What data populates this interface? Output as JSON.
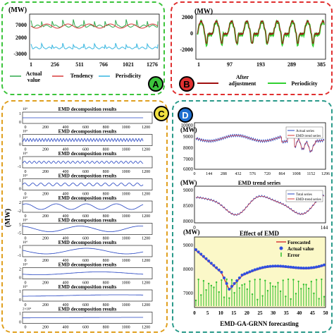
{
  "colors": {
    "green_border": "#3cc43c",
    "red_border": "#e03030",
    "orange_border": "#e0a020",
    "teal_border": "#2a9a8a",
    "actual_green": "#2ea84a",
    "tendency_red": "#d83a3a",
    "periodicity_cyan": "#36b6e0",
    "adjust_dark_red": "#a01010",
    "period_bright_green": "#30d030",
    "emd_blue": "#2040c0",
    "badge_a": "#3cc43c",
    "badge_b": "#e03030",
    "badge_c": "#f0e040",
    "badge_d": "#2070d0"
  },
  "panelA": {
    "unit": "(MW)",
    "yticks": [
      "7000",
      "2000",
      "-3000"
    ],
    "xticks": [
      "1",
      "256",
      "511",
      "766",
      "1021",
      "1276"
    ],
    "legend": [
      {
        "line1": "Actual",
        "line2": "value"
      },
      {
        "line1": "Tendency",
        "line2": ""
      },
      {
        "line1": "Perisdicity",
        "line2": ""
      }
    ],
    "badge": "A"
  },
  "panelB": {
    "unit": "(MW)",
    "yticks": [
      "2000",
      "0",
      "-2000"
    ],
    "xticks": [
      "1",
      "97",
      "193",
      "289",
      "385"
    ],
    "legend": [
      {
        "line1": "After",
        "line2": "adjustment"
      },
      {
        "line1": "Periodicity",
        "line2": ""
      }
    ],
    "badge": "B"
  },
  "panelC": {
    "ylabel": "(MW)",
    "title": "EMD decomposition results",
    "xticks": [
      "0",
      "200",
      "400",
      "600",
      "800",
      "1000",
      "1200"
    ],
    "badge": "C",
    "rows": [
      {
        "exp": "10⁴",
        "yt": "1",
        "yb": "0",
        "title": "EMD decomposition results"
      },
      {
        "exp": "10⁴",
        "yt": "1",
        "yb": "0",
        "title": "EMD decomposition results"
      },
      {
        "exp": "10⁴",
        "yt": "1",
        "yb": "-1",
        "title": "EMD decomposition results"
      },
      {
        "exp": "10⁴",
        "yt": "1",
        "yb": "0",
        "title": "EMD decomposition results"
      },
      {
        "exp": "10⁴",
        "yt": "2",
        "yb": "-2",
        "title": "EMD decomposition results"
      },
      {
        "exp": "10⁴",
        "yt": "5",
        "yb": "-5",
        "title": "EMD decomposition results"
      },
      {
        "exp": "10⁴",
        "yt": "1",
        "yb": "-1",
        "title": "EMD decomposition results"
      },
      {
        "exp": "10⁴",
        "yt": "2",
        "yb": "0",
        "title": "EMD decomposition results"
      },
      {
        "exp": "10⁴",
        "yt": "1",
        "yb": "0",
        "title": "EMD decomposition results"
      },
      {
        "exp": "2×10⁴",
        "yt": "1",
        "yb": "0",
        "title": "EMD decomposition results"
      }
    ]
  },
  "panelD": {
    "badge": "D",
    "top": {
      "unit": "(MW)",
      "yticks": [
        "10000",
        "9000",
        "8000",
        "7000",
        "6000"
      ],
      "xticks": [
        "0",
        "144",
        "288",
        "432",
        "576",
        "720",
        "864",
        "1008",
        "1152",
        "1296"
      ],
      "legend": [
        "Actual series",
        "EMD trend series"
      ]
    },
    "mid": {
      "unit": "(MW)",
      "title": "EMD trend series",
      "yticks": [
        "9000",
        "8500",
        "8000"
      ],
      "xticks": [
        "0",
        "144"
      ],
      "legend": [
        "Total series",
        "EMD-trend series"
      ]
    },
    "bottom": {
      "unit": "(MW)",
      "title": "Effect of EMD",
      "yticks": [
        "9000",
        "8000",
        "7000"
      ],
      "xticks": [
        "0",
        "5",
        "10",
        "15",
        "20",
        "25",
        "30",
        "35",
        "40",
        "45",
        "50"
      ],
      "legend": [
        "Forecasted",
        "Actual value",
        "Error"
      ],
      "xlabel": "EMD-GA-GRNN forecasting"
    }
  }
}
